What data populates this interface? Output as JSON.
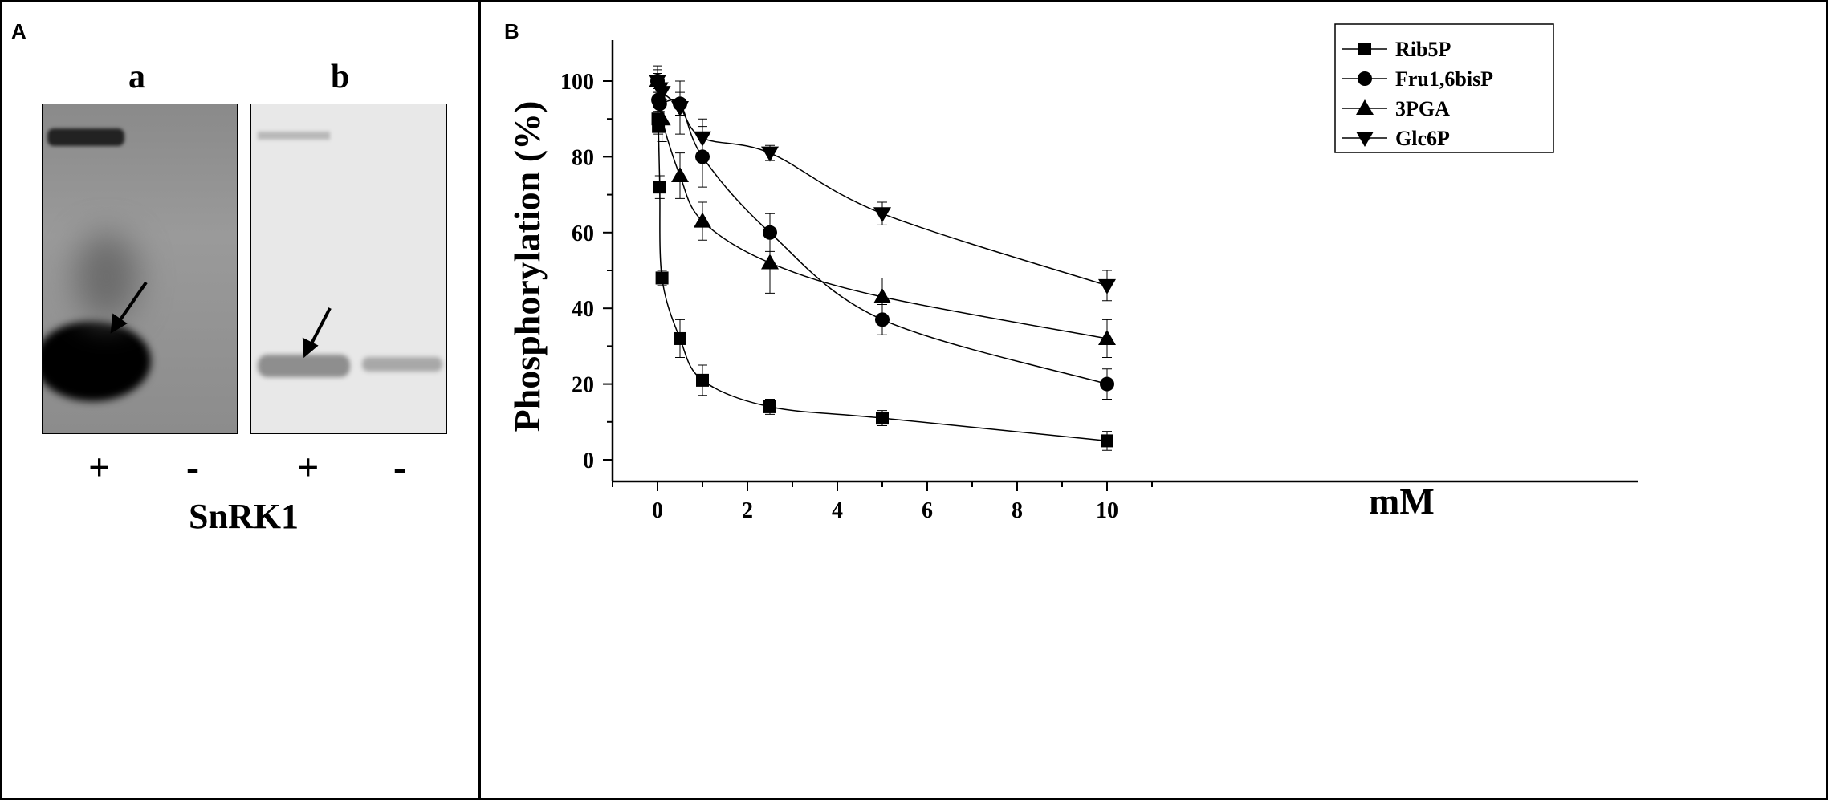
{
  "panel_a": {
    "label": "A",
    "lanes": [
      "a",
      "b"
    ],
    "signs": [
      "+",
      "-",
      "+",
      "-"
    ],
    "caption": "SnRK1"
  },
  "chart_data": {
    "panel_label": "B",
    "type": "line",
    "title": "",
    "xlabel": "mM",
    "ylabel": "Phosphorylation (%)",
    "xlim": [
      -1,
      11
    ],
    "ylim": [
      -5,
      110
    ],
    "xticks": [
      0,
      2,
      4,
      6,
      8,
      10
    ],
    "yticks": [
      0,
      20,
      40,
      60,
      80,
      100
    ],
    "legend_position": "top-right",
    "series": [
      {
        "name": "Rib5P",
        "marker": "square",
        "x": [
          0,
          0.01,
          0.02,
          0.05,
          0.1,
          0.5,
          1,
          2.5,
          5,
          10
        ],
        "y": [
          100,
          90,
          88,
          72,
          48,
          32,
          21,
          14,
          11,
          5
        ],
        "err": [
          2,
          2,
          2,
          3,
          2,
          5,
          4,
          2,
          2,
          2.5
        ]
      },
      {
        "name": "Fru1,6bisP",
        "marker": "circle",
        "x": [
          0,
          0.02,
          0.05,
          0.5,
          1,
          2.5,
          5,
          10
        ],
        "y": [
          100,
          95,
          94,
          94,
          80,
          60,
          37,
          20
        ],
        "err": [
          2,
          2,
          2,
          3,
          8,
          5,
          4,
          4
        ]
      },
      {
        "name": "3PGA",
        "marker": "triangle-up",
        "x": [
          0,
          0.1,
          0.5,
          1,
          2.5,
          5,
          10
        ],
        "y": [
          100,
          90,
          75,
          63,
          52,
          43,
          32
        ],
        "err": [
          3,
          6,
          6,
          5,
          8,
          5,
          5
        ]
      },
      {
        "name": "Glc6P",
        "marker": "triangle-down",
        "x": [
          0,
          0.05,
          0.1,
          0.5,
          1,
          2.5,
          5,
          10
        ],
        "y": [
          100,
          98,
          97,
          93,
          85,
          81,
          65,
          46
        ],
        "err": [
          4,
          2,
          2,
          7,
          5,
          2,
          3,
          4
        ]
      }
    ]
  }
}
